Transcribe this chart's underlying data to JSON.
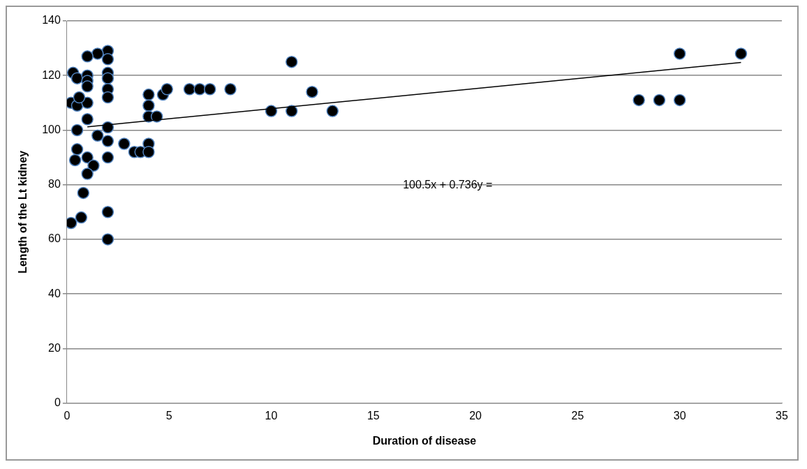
{
  "chart_data": {
    "type": "scatter",
    "xlabel": "Duration of disease",
    "ylabel": "Length of the Lt kidney",
    "annotations": [
      "100.5x + 0.736y ="
    ],
    "xlim": [
      0,
      35
    ],
    "xticks": [
      0,
      5,
      10,
      15,
      20,
      25,
      30,
      35
    ],
    "ylim": [
      0,
      140
    ],
    "yticks": [
      0,
      20,
      40,
      60,
      80,
      100,
      120,
      140
    ],
    "grid": "y",
    "legend": false,
    "marker": "circle",
    "series": [
      {
        "color": "#000000",
        "x": [
          0.3,
          0.5,
          1,
          1,
          1,
          2,
          2,
          2,
          2,
          2,
          2,
          0.2,
          0.5,
          1,
          1,
          0.5,
          1.5,
          2,
          2,
          0.5,
          1,
          0.4,
          1.3,
          1,
          2,
          0.8,
          0.7,
          0.2,
          2,
          2,
          2.8,
          3.3,
          3.6,
          4,
          4,
          4,
          4,
          4,
          4.4,
          4.7,
          4.9,
          6,
          6.5,
          7,
          8,
          10,
          11,
          12,
          13,
          11,
          28,
          29,
          30,
          30,
          33,
          1.5,
          1,
          0.6
        ],
        "values": [
          121,
          119,
          120,
          118,
          116,
          129,
          126,
          121,
          119,
          115,
          112,
          110,
          109,
          110,
          104,
          100,
          98,
          101,
          96,
          93,
          90,
          89,
          87,
          84,
          90,
          77,
          68,
          66,
          70,
          60,
          95,
          92,
          92,
          95,
          92,
          113,
          109,
          105,
          105,
          113,
          115,
          115,
          115,
          115,
          115,
          107,
          107,
          114,
          107,
          125,
          111,
          111,
          111,
          128,
          128,
          128,
          127,
          112
        ]
      },
      {
        "type": "line",
        "color": "#000000",
        "marker": "none",
        "x": [
          1,
          33
        ],
        "values": [
          101.2,
          124.8
        ]
      }
    ]
  }
}
